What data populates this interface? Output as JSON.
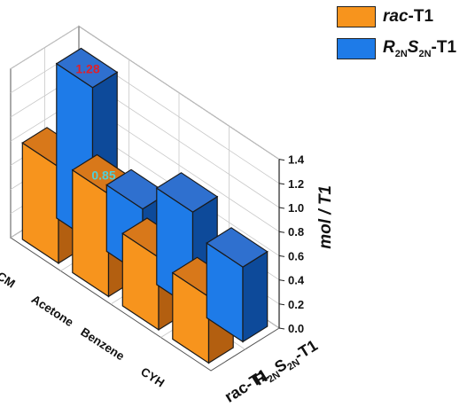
{
  "chart_data": {
    "type": "bar",
    "subtype": "3d-bar",
    "title": "",
    "zlabel": "mol / T1",
    "zlim": [
      0.0,
      1.4
    ],
    "zticks": [
      "0.0",
      "0.2",
      "0.4",
      "0.6",
      "0.8",
      "1.0",
      "1.2",
      "1.4"
    ],
    "categories": [
      "CYH",
      "Benzene",
      "Acetone",
      "DCM"
    ],
    "series": [
      {
        "name": "rac-T1",
        "axis_label": "rac-T1",
        "color": "#f7941d",
        "side_color": "#b35f10",
        "top_color": "#d8781a",
        "values": [
          0.55,
          0.6,
          0.85,
          0.8
        ]
      },
      {
        "name": "R2NS2N-T1",
        "axis_label": "R2NS2N-T1",
        "color": "#1e7be8",
        "side_color": "#0d4a9a",
        "top_color": "#2f70cf",
        "values": [
          0.62,
          0.8,
          0.55,
          1.28
        ]
      }
    ],
    "data_labels": [
      {
        "series": 0,
        "index": 2,
        "text": "0.85",
        "color": "#4fd0d8"
      },
      {
        "series": 1,
        "index": 3,
        "text": "1.28",
        "color": "#e0202a"
      }
    ],
    "grid": true,
    "legend_position": "top-right"
  },
  "legend": {
    "items": [
      {
        "prefix": "rac",
        "suffix": "-T1",
        "color": "#f7941d"
      },
      {
        "r": "R",
        "r_sub": "2N",
        "s": "S",
        "s_sub": "2N",
        "suffix": "-T1",
        "color": "#1e7be8"
      }
    ]
  }
}
